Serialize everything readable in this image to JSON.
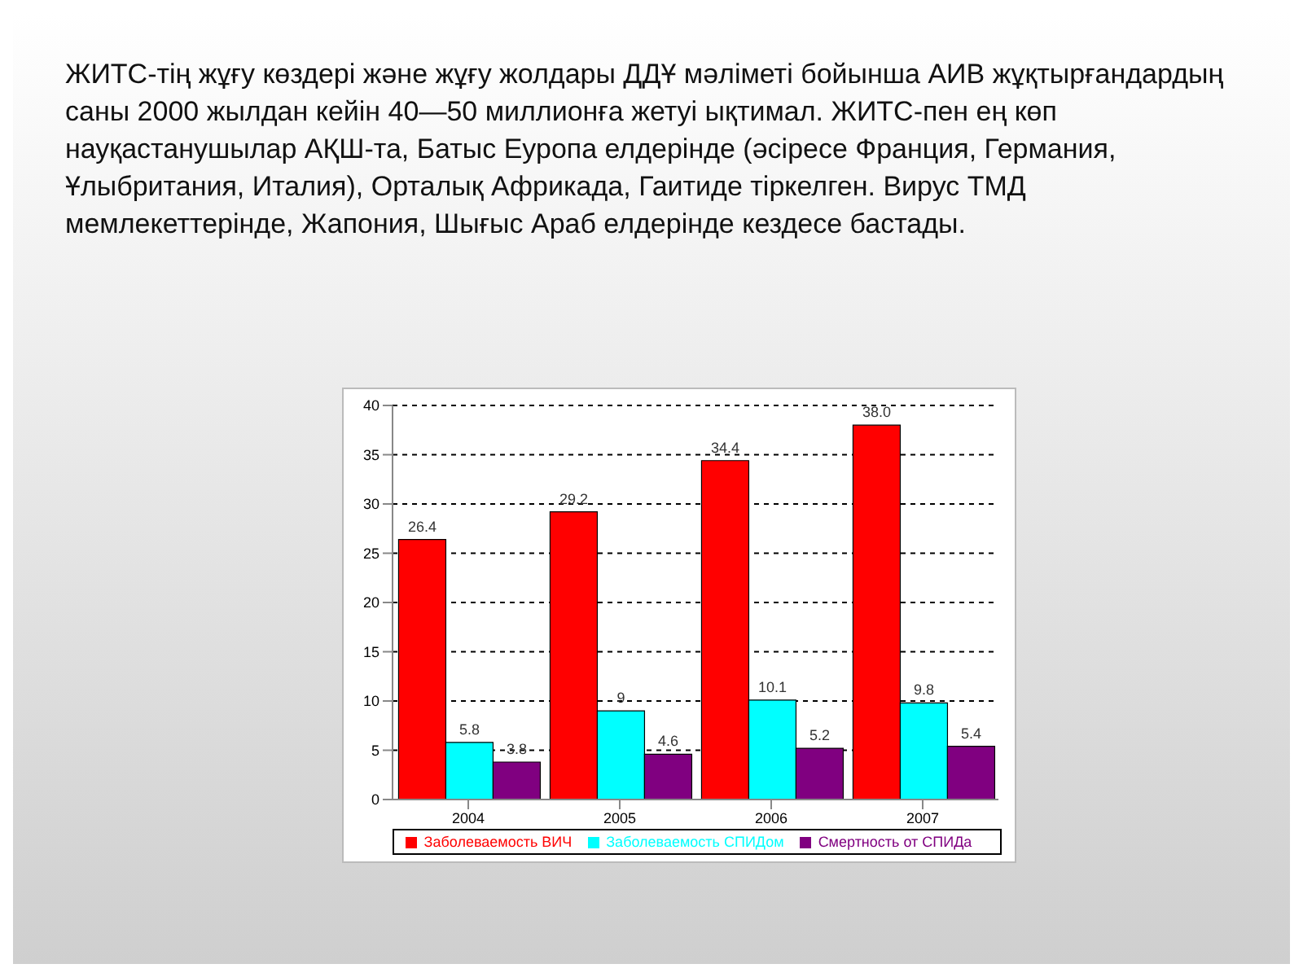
{
  "chart_data": {
    "type": "bar",
    "annotations": [
      "ЖИТС-тің жұғу көздері және жұғу жолдары ДДҰ мәліметі бойынша АИВ жұқтырғандардың саны 2000 жылдан кейін 40—50 миллионға жетуі ықтимал. ЖИТС-пен ең көп науқастанушылар АҚШ-та, Батыс Еуропа елдерінде (әсіресе Франция, Германия, Ұлыбритания, Италия), Орталық Африкада, Гаитиде тіркелген. Вирус ТМД мемлекеттерінде, Жапония, Шығыс Араб елдерінде кездесе бастады."
    ],
    "categories": [
      "2004",
      "2005",
      "2006",
      "2007"
    ],
    "series": [
      {
        "name": "Заболеваемость ВИЧ",
        "color": "#ff0000",
        "values": [
          26.4,
          29.2,
          34.4,
          38.0
        ],
        "value_labels": [
          "26.4",
          "29.2",
          "34.4",
          "38.0"
        ]
      },
      {
        "name": "Заболеваемость СПИДом",
        "color": "#00ffff",
        "values": [
          5.8,
          9,
          10.1,
          9.8
        ],
        "value_labels": [
          "5.8",
          "9",
          "10.1",
          "9.8"
        ]
      },
      {
        "name": "Смертность от СПИДа",
        "color": "#800080",
        "values": [
          3.8,
          4.6,
          5.2,
          5.4
        ],
        "value_labels": [
          "3.8",
          "4.6",
          "5.2",
          "5.4"
        ]
      }
    ],
    "ylim": [
      0,
      40
    ],
    "yticks": [
      0,
      5,
      10,
      15,
      20,
      25,
      30,
      35,
      40
    ],
    "grid": "y",
    "legend": "bottom"
  }
}
